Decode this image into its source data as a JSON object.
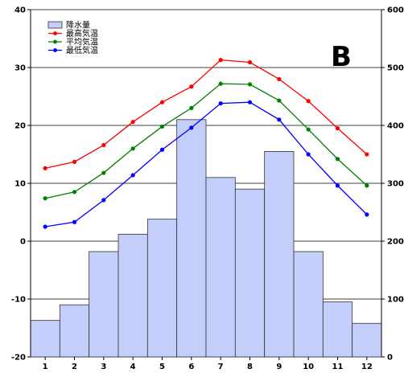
{
  "chart_data": {
    "type": "bar+line",
    "panel_label": "B",
    "categories": [
      "1",
      "2",
      "3",
      "4",
      "5",
      "6",
      "7",
      "8",
      "9",
      "10",
      "11",
      "12"
    ],
    "left_axis": {
      "ylim": [
        -20,
        40
      ],
      "ticks": [
        "40",
        "30",
        "20",
        "10",
        "0",
        "-10",
        "-20"
      ]
    },
    "right_axis": {
      "ylim": [
        0,
        600
      ],
      "ticks": [
        "600",
        "500",
        "400",
        "300",
        "200",
        "100",
        "0"
      ]
    },
    "grid": true,
    "legend_position": "top-left",
    "bars": {
      "name": "降水量",
      "axis": "right",
      "color": "#c3cefa",
      "values": [
        63,
        90,
        182,
        212,
        238,
        410,
        310,
        290,
        355,
        182,
        95,
        58
      ]
    },
    "series": [
      {
        "name": "最高気温",
        "axis": "left",
        "color": "#ff0000",
        "values": [
          12.6,
          13.7,
          16.6,
          20.6,
          24.0,
          26.7,
          31.3,
          30.9,
          28.0,
          24.2,
          19.5,
          15.0
        ]
      },
      {
        "name": "平均気温",
        "axis": "left",
        "color": "#008000",
        "values": [
          7.4,
          8.5,
          11.8,
          16.0,
          19.8,
          23.0,
          27.2,
          27.1,
          24.3,
          19.3,
          14.2,
          9.6
        ]
      },
      {
        "name": "最低気温",
        "axis": "left",
        "color": "#0000ff",
        "values": [
          2.5,
          3.3,
          7.1,
          11.4,
          15.8,
          19.6,
          23.8,
          24.0,
          21.0,
          15.0,
          9.6,
          4.6
        ]
      }
    ]
  }
}
